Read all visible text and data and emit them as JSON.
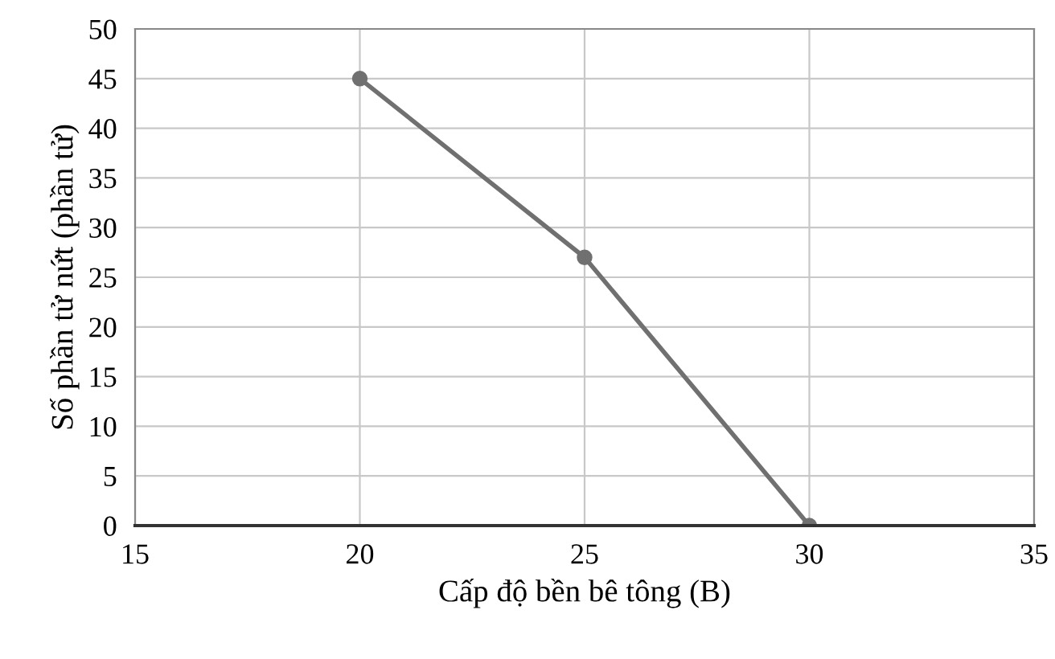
{
  "chart_data": {
    "type": "line",
    "xlabel": "Cấp độ bền bê tông (B)",
    "ylabel": "Số phần tử nứt (phần tử)",
    "x": [
      20,
      25,
      30
    ],
    "series": [
      {
        "color": "#707070",
        "values": [
          45,
          27,
          0
        ]
      }
    ],
    "xlim": [
      15,
      35
    ],
    "xticks": [
      15,
      20,
      25,
      30,
      35
    ],
    "ylim": [
      0,
      50
    ],
    "yticks": [
      0,
      5,
      10,
      15,
      20,
      25,
      30,
      35,
      40,
      45,
      50
    ],
    "grid": true,
    "marker": "circle",
    "line_style": "solid"
  }
}
